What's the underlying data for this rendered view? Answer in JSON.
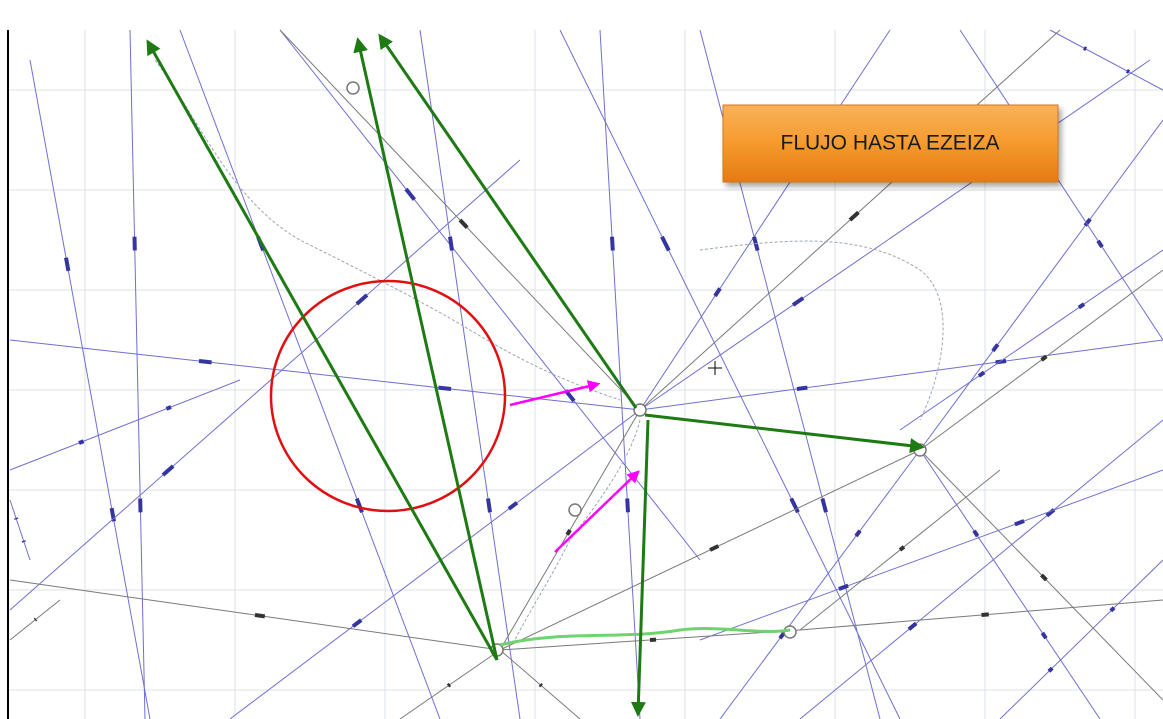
{
  "title_box": {
    "label": "FLUJO HASTA EZEIZA"
  }
}
